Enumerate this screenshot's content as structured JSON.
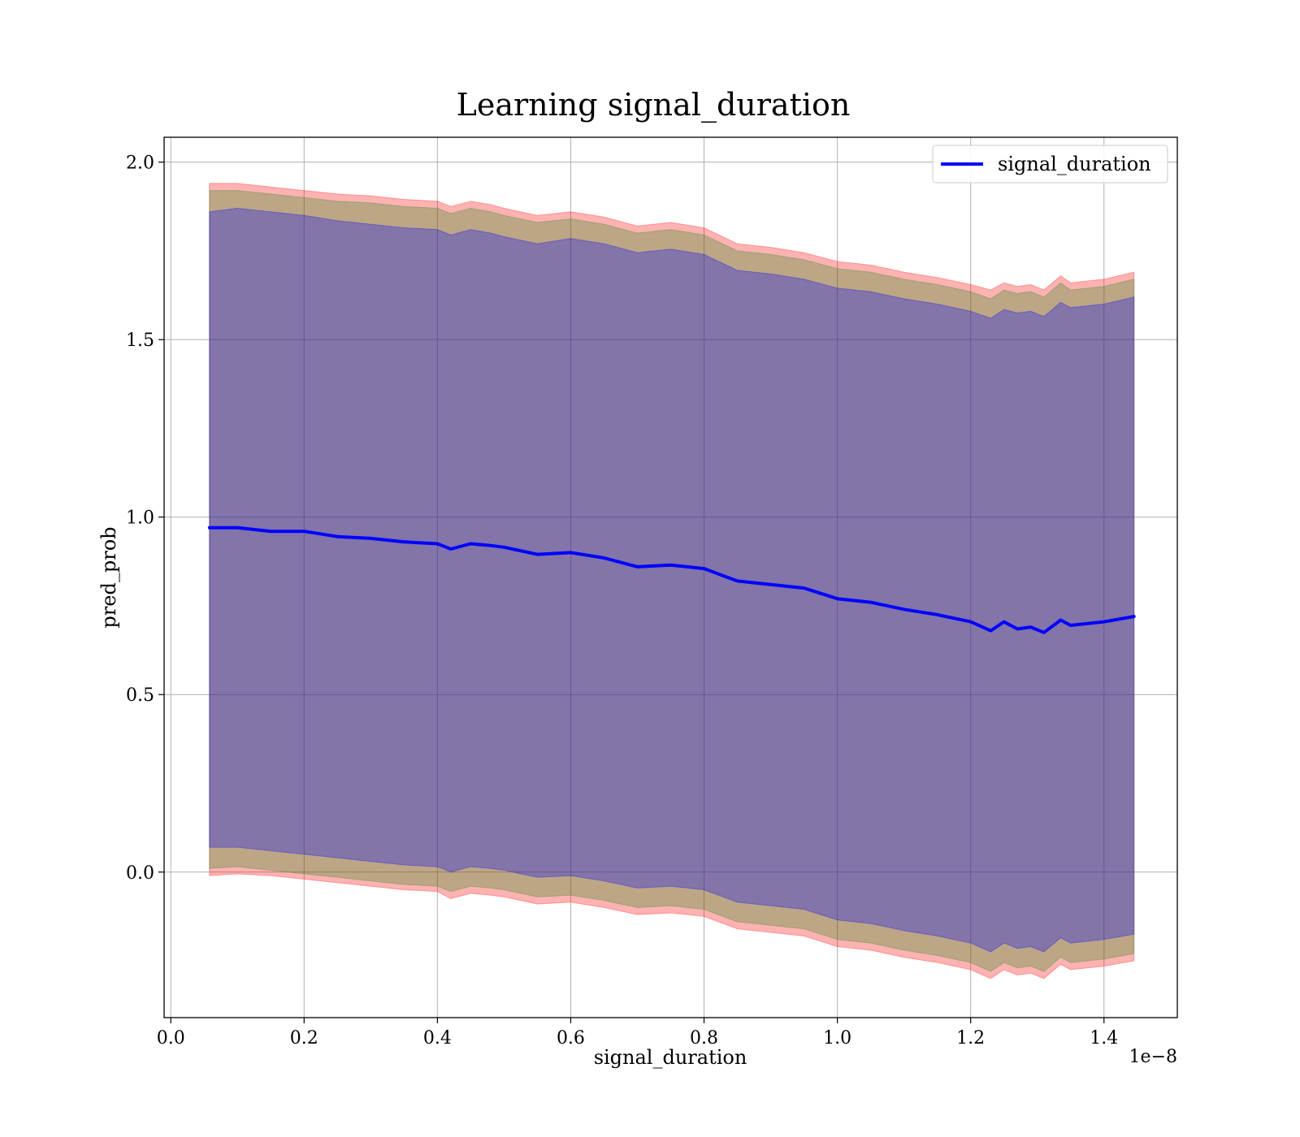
{
  "chart_data": {
    "type": "line",
    "title": "Learning signal_duration",
    "xlabel": "signal_duration",
    "ylabel": "pred_prob",
    "x_offset_label": "1e−8",
    "xlim": [
      -0.01,
      1.51
    ],
    "ylim": [
      -0.41,
      2.07
    ],
    "x_ticks": [
      0.0,
      0.2,
      0.4,
      0.6,
      0.8,
      1.0,
      1.2,
      1.4
    ],
    "x_tick_labels": [
      "0.0",
      "0.2",
      "0.4",
      "0.6",
      "0.8",
      "1.0",
      "1.2",
      "1.4"
    ],
    "y_ticks": [
      0.0,
      0.5,
      1.0,
      1.5,
      2.0
    ],
    "y_tick_labels": [
      "0.0",
      "0.5",
      "1.0",
      "1.5",
      "2.0"
    ],
    "grid": true,
    "legend_position": "top-right",
    "series": [
      {
        "name": "signal_duration",
        "color": "#0000ff",
        "x": [
          0.058,
          0.1,
          0.15,
          0.2,
          0.25,
          0.3,
          0.35,
          0.4,
          0.42,
          0.45,
          0.48,
          0.5,
          0.55,
          0.6,
          0.65,
          0.7,
          0.75,
          0.8,
          0.85,
          0.9,
          0.95,
          1.0,
          1.05,
          1.1,
          1.15,
          1.2,
          1.23,
          1.25,
          1.27,
          1.29,
          1.31,
          1.335,
          1.35,
          1.4,
          1.445
        ],
        "y": [
          0.97,
          0.97,
          0.96,
          0.96,
          0.945,
          0.94,
          0.93,
          0.925,
          0.91,
          0.925,
          0.92,
          0.915,
          0.895,
          0.9,
          0.885,
          0.86,
          0.865,
          0.855,
          0.82,
          0.81,
          0.8,
          0.77,
          0.76,
          0.74,
          0.725,
          0.705,
          0.68,
          0.705,
          0.685,
          0.69,
          0.675,
          0.71,
          0.695,
          0.705,
          0.72
        ]
      }
    ],
    "bands": [
      {
        "color": "#ff0000",
        "opacity": 0.3,
        "upper": [
          1.94,
          1.94,
          1.93,
          1.92,
          1.91,
          1.905,
          1.895,
          1.89,
          1.875,
          1.89,
          1.88,
          1.87,
          1.85,
          1.86,
          1.845,
          1.82,
          1.83,
          1.815,
          1.77,
          1.76,
          1.745,
          1.72,
          1.71,
          1.69,
          1.675,
          1.655,
          1.64,
          1.66,
          1.65,
          1.655,
          1.64,
          1.68,
          1.66,
          1.67,
          1.69
        ],
        "lower": [
          -0.01,
          -0.005,
          -0.01,
          -0.02,
          -0.03,
          -0.04,
          -0.05,
          -0.055,
          -0.075,
          -0.06,
          -0.065,
          -0.07,
          -0.09,
          -0.085,
          -0.1,
          -0.12,
          -0.115,
          -0.125,
          -0.16,
          -0.17,
          -0.18,
          -0.21,
          -0.22,
          -0.24,
          -0.255,
          -0.275,
          -0.3,
          -0.275,
          -0.29,
          -0.285,
          -0.3,
          -0.26,
          -0.275,
          -0.265,
          -0.25
        ]
      },
      {
        "color": "#228b22",
        "opacity": 0.3,
        "upper": [
          1.92,
          1.92,
          1.91,
          1.9,
          1.89,
          1.885,
          1.875,
          1.87,
          1.855,
          1.87,
          1.86,
          1.85,
          1.83,
          1.84,
          1.825,
          1.8,
          1.81,
          1.795,
          1.75,
          1.74,
          1.725,
          1.7,
          1.69,
          1.67,
          1.655,
          1.635,
          1.615,
          1.64,
          1.63,
          1.635,
          1.62,
          1.66,
          1.64,
          1.65,
          1.67
        ],
        "lower": [
          0.01,
          0.015,
          0.005,
          -0.005,
          -0.015,
          -0.025,
          -0.035,
          -0.04,
          -0.055,
          -0.04,
          -0.045,
          -0.05,
          -0.07,
          -0.065,
          -0.08,
          -0.1,
          -0.095,
          -0.105,
          -0.14,
          -0.15,
          -0.16,
          -0.19,
          -0.2,
          -0.22,
          -0.235,
          -0.255,
          -0.28,
          -0.255,
          -0.27,
          -0.265,
          -0.28,
          -0.24,
          -0.255,
          -0.245,
          -0.23
        ]
      },
      {
        "color": "#0000ff",
        "opacity": 0.3,
        "upper": [
          1.86,
          1.87,
          1.86,
          1.85,
          1.835,
          1.825,
          1.815,
          1.81,
          1.795,
          1.81,
          1.8,
          1.79,
          1.77,
          1.785,
          1.77,
          1.745,
          1.755,
          1.74,
          1.695,
          1.685,
          1.67,
          1.645,
          1.635,
          1.615,
          1.6,
          1.58,
          1.56,
          1.585,
          1.575,
          1.58,
          1.565,
          1.605,
          1.59,
          1.6,
          1.62
        ],
        "lower": [
          0.07,
          0.07,
          0.06,
          0.05,
          0.04,
          0.03,
          0.02,
          0.015,
          0.0,
          0.015,
          0.01,
          0.005,
          -0.015,
          -0.01,
          -0.025,
          -0.045,
          -0.04,
          -0.05,
          -0.085,
          -0.095,
          -0.105,
          -0.135,
          -0.145,
          -0.165,
          -0.18,
          -0.2,
          -0.225,
          -0.2,
          -0.215,
          -0.21,
          -0.225,
          -0.185,
          -0.2,
          -0.19,
          -0.175
        ]
      }
    ]
  }
}
